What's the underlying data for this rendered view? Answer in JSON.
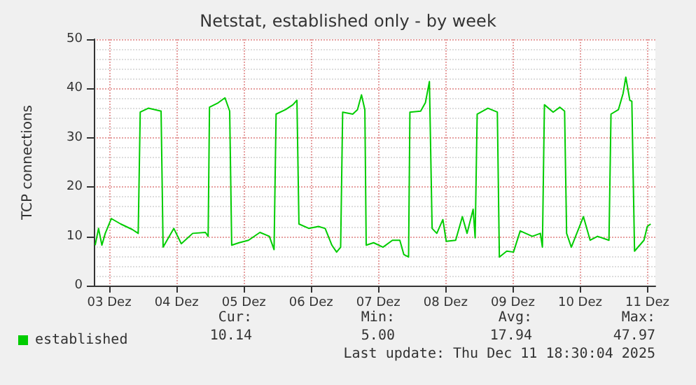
{
  "chart_data": {
    "type": "line",
    "title": "Netstat, established only - by week",
    "ylabel": "TCP connections",
    "x": [
      2.79,
      2.84,
      2.89,
      2.94,
      3.03,
      3.17,
      3.34,
      3.43,
      3.46,
      3.58,
      3.77,
      3.8,
      3.96,
      4.07,
      4.24,
      4.43,
      4.47,
      4.49,
      4.62,
      4.72,
      4.79,
      4.82,
      4.93,
      5.07,
      5.24,
      5.38,
      5.45,
      5.48,
      5.62,
      5.73,
      5.79,
      5.82,
      5.97,
      6.11,
      6.21,
      6.31,
      6.38,
      6.44,
      6.47,
      6.62,
      6.69,
      6.75,
      6.8,
      6.82,
      6.93,
      7.07,
      7.21,
      7.32,
      7.38,
      7.45,
      7.47,
      7.63,
      7.7,
      7.76,
      7.8,
      7.87,
      7.96,
      8.01,
      8.15,
      8.25,
      8.32,
      8.41,
      8.44,
      8.47,
      8.63,
      8.77,
      8.8,
      8.91,
      9.01,
      9.11,
      9.29,
      9.41,
      9.44,
      9.47,
      9.6,
      9.7,
      9.77,
      9.8,
      9.87,
      10.05,
      10.15,
      10.26,
      10.43,
      10.46,
      10.57,
      10.64,
      10.68,
      10.74,
      10.77,
      10.81,
      10.95,
      11.0,
      11.05
    ],
    "series": [
      {
        "name": "established",
        "color": "#00cc00",
        "values": [
          8.2,
          11.6,
          8.2,
          10.6,
          13.6,
          12.5,
          11.4,
          10.6,
          35.2,
          36.0,
          35.4,
          7.8,
          11.6,
          8.5,
          10.6,
          10.8,
          10.0,
          36.2,
          37.1,
          38.1,
          35.4,
          8.2,
          8.7,
          9.2,
          10.8,
          10.0,
          7.3,
          34.8,
          35.7,
          36.7,
          37.6,
          12.5,
          11.6,
          12.0,
          11.6,
          8.2,
          6.8,
          7.8,
          35.2,
          34.8,
          35.7,
          38.7,
          35.7,
          8.2,
          8.7,
          7.8,
          9.2,
          9.2,
          6.3,
          5.8,
          35.2,
          35.4,
          37.1,
          41.4,
          11.6,
          10.6,
          13.4,
          9.0,
          9.2,
          14.0,
          10.6,
          15.5,
          9.7,
          34.8,
          36.0,
          35.2,
          5.8,
          7.0,
          6.8,
          11.1,
          10.0,
          10.6,
          7.8,
          36.7,
          35.2,
          36.2,
          35.4,
          10.6,
          7.8,
          14.0,
          9.2,
          10.0,
          9.2,
          34.8,
          35.7,
          39.0,
          42.3,
          37.6,
          37.4,
          7.0,
          9.2,
          12.0,
          12.5
        ]
      }
    ],
    "xlim": [
      2.77,
      11.12
    ],
    "xticks": [
      {
        "value": 3,
        "label": "03 Dez"
      },
      {
        "value": 4,
        "label": "04 Dez"
      },
      {
        "value": 5,
        "label": "05 Dez"
      },
      {
        "value": 6,
        "label": "06 Dez"
      },
      {
        "value": 7,
        "label": "07 Dez"
      },
      {
        "value": 8,
        "label": "08 Dez"
      },
      {
        "value": 9,
        "label": "09 Dez"
      },
      {
        "value": 10,
        "label": "10 Dez"
      },
      {
        "value": 11,
        "label": "11 Dez"
      }
    ],
    "ylim": [
      0,
      50
    ],
    "yticks": [
      0,
      10,
      20,
      30,
      40,
      50
    ],
    "grid": true,
    "legend": "bottom left",
    "marker": "none",
    "line_style": "solid",
    "annotations": [
      "Cur:",
      "10.14",
      "Min:",
      "5.00",
      "Avg:",
      "17.94",
      "Max:",
      "47.97",
      "Last update: Thu Dec 11 18:30:04 2025"
    ]
  }
}
